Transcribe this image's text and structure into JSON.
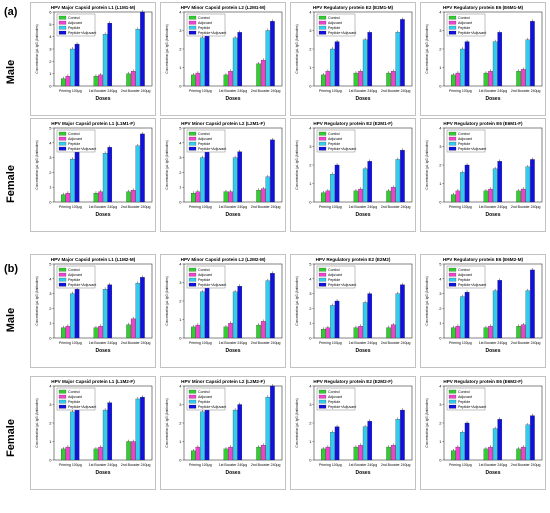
{
  "panel_labels": [
    "(a)",
    "(b)"
  ],
  "row_labels": [
    "Male",
    "Female",
    "Male",
    "Female"
  ],
  "x_axis_title": "Doses",
  "y_axis_title": "Concentration (μL IgG (Antibodies)",
  "legend_labels": [
    "Control",
    "Adjuvant",
    "Peptide",
    "Peptide+Adjuvant"
  ],
  "series_colors": [
    "#33cc33",
    "#ee44cc",
    "#33ccee",
    "#1111dd"
  ],
  "chart_data": [
    {
      "type": "bar",
      "title": "HPV Major Capsid protein L1 (L1M1-M)",
      "categories": [
        "Priming 100μg",
        "1st Booster 240μg",
        "2nd Booster 240μg"
      ],
      "ylim": [
        0,
        6
      ],
      "series": [
        {
          "name": "Control",
          "values": [
            0.6,
            0.8,
            1.0
          ]
        },
        {
          "name": "Adjuvant",
          "values": [
            0.8,
            0.9,
            1.2
          ]
        },
        {
          "name": "Peptide",
          "values": [
            3.0,
            4.2,
            4.6
          ]
        },
        {
          "name": "Peptide+Adjuvant",
          "values": [
            3.4,
            5.1,
            6.0
          ]
        }
      ]
    },
    {
      "type": "bar",
      "title": "HPV Minor Capsid protein L2 (L2M1-M)",
      "categories": [
        "Priming 100μg",
        "1st Booster 240μg",
        "2nd Booster 240μg"
      ],
      "ylim": [
        0,
        4
      ],
      "series": [
        {
          "name": "Control",
          "values": [
            0.6,
            0.6,
            1.2
          ]
        },
        {
          "name": "Adjuvant",
          "values": [
            0.7,
            0.8,
            1.4
          ]
        },
        {
          "name": "Peptide",
          "values": [
            2.6,
            2.6,
            3.0
          ]
        },
        {
          "name": "Peptide+Adjuvant",
          "values": [
            2.9,
            2.9,
            3.5
          ]
        }
      ]
    },
    {
      "type": "bar",
      "title": "HPV Regulatory protein E2 (E2M1-M)",
      "categories": [
        "Priming 100μg",
        "1st Booster 240μg",
        "2nd Booster 240μg"
      ],
      "ylim": [
        0,
        4
      ],
      "series": [
        {
          "name": "Control",
          "values": [
            0.6,
            0.7,
            0.7
          ]
        },
        {
          "name": "Adjuvant",
          "values": [
            0.8,
            0.8,
            0.8
          ]
        },
        {
          "name": "Peptide",
          "values": [
            2.0,
            2.5,
            2.9
          ]
        },
        {
          "name": "Peptide+Adjuvant",
          "values": [
            2.4,
            2.9,
            3.6
          ]
        }
      ]
    },
    {
      "type": "bar",
      "title": "HPV Regulatory protein E6 (E6M1-M)",
      "categories": [
        "Priming 100μg",
        "1st Booster 240μg",
        "2nd Booster 240μg"
      ],
      "ylim": [
        0,
        4
      ],
      "series": [
        {
          "name": "Control",
          "values": [
            0.6,
            0.7,
            0.8
          ]
        },
        {
          "name": "Adjuvant",
          "values": [
            0.7,
            0.8,
            0.9
          ]
        },
        {
          "name": "Peptide",
          "values": [
            2.0,
            2.4,
            2.5
          ]
        },
        {
          "name": "Peptide+Adjuvant",
          "values": [
            2.4,
            2.9,
            3.5
          ]
        }
      ]
    },
    {
      "type": "bar",
      "title": "HPV Major Capsid protein L1 (L1M1-F)",
      "categories": [
        "Priming 100μg",
        "1st Booster 240μg",
        "2nd Booster 240μg"
      ],
      "ylim": [
        0,
        5
      ],
      "series": [
        {
          "name": "Control",
          "values": [
            0.5,
            0.6,
            0.7
          ]
        },
        {
          "name": "Adjuvant",
          "values": [
            0.6,
            0.7,
            0.8
          ]
        },
        {
          "name": "Peptide",
          "values": [
            2.9,
            3.3,
            3.8
          ]
        },
        {
          "name": "Peptide+Adjuvant",
          "values": [
            3.4,
            3.7,
            4.6
          ]
        }
      ]
    },
    {
      "type": "bar",
      "title": "HPV Minor Capsid protein L2 (L2M1-F)",
      "categories": [
        "Priming 100μg",
        "1st Booster 240μg",
        "2nd Booster 240μg"
      ],
      "ylim": [
        0,
        5
      ],
      "series": [
        {
          "name": "Control",
          "values": [
            0.6,
            0.7,
            0.8
          ]
        },
        {
          "name": "Adjuvant",
          "values": [
            0.7,
            0.7,
            0.9
          ]
        },
        {
          "name": "Peptide",
          "values": [
            3.0,
            3.0,
            1.7
          ]
        },
        {
          "name": "Peptide+Adjuvant",
          "values": [
            3.4,
            3.4,
            4.2
          ]
        }
      ]
    },
    {
      "type": "bar",
      "title": "HPV Regulatory protein E2 (E2M1-F)",
      "categories": [
        "Priming 100μg",
        "1st Booster 240μg",
        "2nd Booster 240μg"
      ],
      "ylim": [
        0,
        4
      ],
      "series": [
        {
          "name": "Control",
          "values": [
            0.5,
            0.6,
            0.6
          ]
        },
        {
          "name": "Adjuvant",
          "values": [
            0.6,
            0.7,
            0.8
          ]
        },
        {
          "name": "Peptide",
          "values": [
            1.5,
            1.8,
            2.3
          ]
        },
        {
          "name": "Peptide+Adjuvant",
          "values": [
            2.0,
            2.2,
            2.8
          ]
        }
      ]
    },
    {
      "type": "bar",
      "title": "HPV Regulatory protein E6 (E6M1-F)",
      "categories": [
        "Priming 100μg",
        "1st Booster 240μg",
        "2nd Booster 240μg"
      ],
      "ylim": [
        0,
        4
      ],
      "series": [
        {
          "name": "Control",
          "values": [
            0.4,
            0.6,
            0.6
          ]
        },
        {
          "name": "Adjuvant",
          "values": [
            0.6,
            0.7,
            0.7
          ]
        },
        {
          "name": "Peptide",
          "values": [
            1.6,
            1.8,
            1.9
          ]
        },
        {
          "name": "Peptide+Adjuvant",
          "values": [
            2.0,
            2.2,
            2.3
          ]
        }
      ]
    },
    {
      "type": "bar",
      "title": "HPV Major Capsid protein L1 (L1M2-M)",
      "categories": [
        "Priming 100μg",
        "1st Booster 240μg",
        "2nd Booster 240μg"
      ],
      "ylim": [
        0,
        5
      ],
      "series": [
        {
          "name": "Control",
          "values": [
            0.7,
            0.7,
            0.9
          ]
        },
        {
          "name": "Adjuvant",
          "values": [
            0.8,
            0.8,
            1.3
          ]
        },
        {
          "name": "Peptide",
          "values": [
            3.0,
            3.3,
            3.7
          ]
        },
        {
          "name": "Peptide+Adjuvant",
          "values": [
            3.3,
            3.6,
            4.1
          ]
        }
      ]
    },
    {
      "type": "bar",
      "title": "HPV Minor Capsid protein L2 (L2M2-M)",
      "categories": [
        "Priming 100μg",
        "1st Booster 240μg",
        "2nd Booster 240μg"
      ],
      "ylim": [
        0,
        4
      ],
      "series": [
        {
          "name": "Control",
          "values": [
            0.6,
            0.6,
            0.7
          ]
        },
        {
          "name": "Adjuvant",
          "values": [
            0.7,
            0.8,
            0.9
          ]
        },
        {
          "name": "Peptide",
          "values": [
            2.5,
            2.5,
            3.1
          ]
        },
        {
          "name": "Peptide+Adjuvant",
          "values": [
            2.8,
            2.8,
            3.5
          ]
        }
      ]
    },
    {
      "type": "bar",
      "title": "HPV Regulatory protein E2 (E2M2)",
      "categories": [
        "Priming 100μg",
        "1st Booster 240μg",
        "2nd Booster 240μg"
      ],
      "ylim": [
        0,
        5
      ],
      "series": [
        {
          "name": "Control",
          "values": [
            0.6,
            0.7,
            0.7
          ]
        },
        {
          "name": "Adjuvant",
          "values": [
            0.7,
            0.8,
            0.9
          ]
        },
        {
          "name": "Peptide",
          "values": [
            2.2,
            2.4,
            3.0
          ]
        },
        {
          "name": "Peptide+Adjuvant",
          "values": [
            2.5,
            3.0,
            3.6
          ]
        }
      ]
    },
    {
      "type": "bar",
      "title": "HPV Regulatory protein E6 (E6M2-M)",
      "categories": [
        "Priming 100μg",
        "1st Booster 240μg",
        "2nd Booster 240μg"
      ],
      "ylim": [
        0,
        5
      ],
      "series": [
        {
          "name": "Control",
          "values": [
            0.7,
            0.7,
            0.8
          ]
        },
        {
          "name": "Adjuvant",
          "values": [
            0.8,
            0.8,
            0.9
          ]
        },
        {
          "name": "Peptide",
          "values": [
            2.8,
            3.2,
            3.2
          ]
        },
        {
          "name": "Peptide+Adjuvant",
          "values": [
            3.1,
            3.9,
            4.6
          ]
        }
      ]
    },
    {
      "type": "bar",
      "title": "HPV Major Capsid protein L1 (L1M2-F)",
      "categories": [
        "Priming 100μg",
        "1st Booster 240μg",
        "2nd Booster 240μg"
      ],
      "ylim": [
        0,
        4
      ],
      "series": [
        {
          "name": "Control",
          "values": [
            0.6,
            0.6,
            1.0
          ]
        },
        {
          "name": "Adjuvant",
          "values": [
            0.7,
            0.7,
            1.0
          ]
        },
        {
          "name": "Peptide",
          "values": [
            2.6,
            2.7,
            3.3
          ]
        },
        {
          "name": "Peptide+Adjuvant",
          "values": [
            3.0,
            3.1,
            3.4
          ]
        }
      ]
    },
    {
      "type": "bar",
      "title": "HPV Minor Capsid protein L2 (L2M2-F)",
      "categories": [
        "Priming 100μg",
        "1st Booster 240μg",
        "2nd Booster 240μg"
      ],
      "ylim": [
        0,
        4
      ],
      "series": [
        {
          "name": "Control",
          "values": [
            0.5,
            0.6,
            0.7
          ]
        },
        {
          "name": "Adjuvant",
          "values": [
            0.7,
            0.7,
            0.8
          ]
        },
        {
          "name": "Peptide",
          "values": [
            2.6,
            2.7,
            3.4
          ]
        },
        {
          "name": "Peptide+Adjuvant",
          "values": [
            3.1,
            3.0,
            4.0
          ]
        }
      ]
    },
    {
      "type": "bar",
      "title": "HPV Regulatory protein E2 (E2M2-F)",
      "categories": [
        "Priming 100μg",
        "1st Booster 240μg",
        "2nd Booster 240μg"
      ],
      "ylim": [
        0,
        4
      ],
      "series": [
        {
          "name": "Control",
          "values": [
            0.6,
            0.7,
            0.7
          ]
        },
        {
          "name": "Adjuvant",
          "values": [
            0.7,
            0.8,
            0.8
          ]
        },
        {
          "name": "Peptide",
          "values": [
            1.5,
            1.8,
            2.2
          ]
        },
        {
          "name": "Peptide+Adjuvant",
          "values": [
            1.8,
            2.1,
            2.7
          ]
        }
      ]
    },
    {
      "type": "bar",
      "title": "HPV Regulatory protein E6 (E6M2-F)",
      "categories": [
        "Priming 100μg",
        "1st Booster 240μg",
        "2nd Booster 240μg"
      ],
      "ylim": [
        0,
        4
      ],
      "series": [
        {
          "name": "Control",
          "values": [
            0.5,
            0.6,
            0.6
          ]
        },
        {
          "name": "Adjuvant",
          "values": [
            0.7,
            0.7,
            0.7
          ]
        },
        {
          "name": "Peptide",
          "values": [
            1.5,
            1.7,
            1.9
          ]
        },
        {
          "name": "Peptide+Adjuvant",
          "values": [
            2.0,
            2.2,
            2.4
          ]
        }
      ]
    }
  ]
}
